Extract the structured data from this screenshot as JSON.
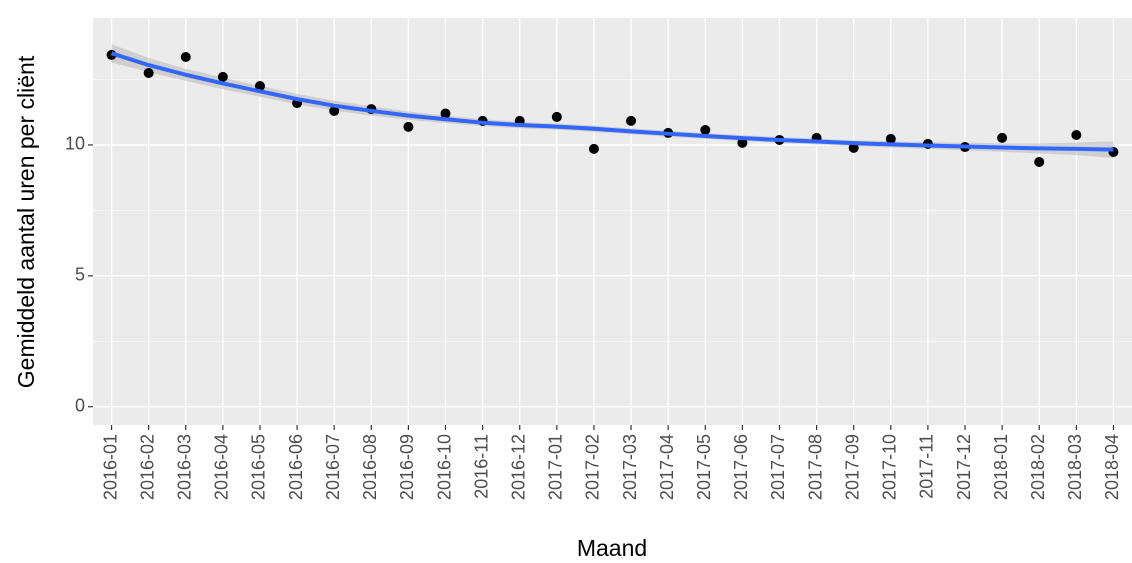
{
  "chart_data": {
    "type": "scatter",
    "x_label": "Maand",
    "y_label": "Gemiddeld aantal uren per cliënt",
    "categories": [
      "2016-01",
      "2016-02",
      "2016-03",
      "2016-04",
      "2016-05",
      "2016-06",
      "2016-07",
      "2016-08",
      "2016-09",
      "2016-10",
      "2016-11",
      "2016-12",
      "2017-01",
      "2017-02",
      "2017-03",
      "2017-04",
      "2017-05",
      "2017-06",
      "2017-07",
      "2017-08",
      "2017-09",
      "2017-10",
      "2017-11",
      "2017-12",
      "2018-01",
      "2018-02",
      "2018-03",
      "2018-04"
    ],
    "values": [
      13.44,
      12.75,
      13.36,
      12.6,
      12.25,
      11.6,
      11.3,
      11.37,
      10.69,
      11.2,
      10.92,
      10.92,
      11.07,
      9.85,
      10.92,
      10.46,
      10.57,
      10.08,
      10.19,
      10.27,
      9.89,
      10.23,
      10.04,
      9.92,
      10.27,
      9.35,
      10.38,
      9.73
    ],
    "color": "#000000",
    "smooth": {
      "color": "#3366FF",
      "band_color": "#BDBDBD",
      "values": [
        13.5,
        13.05,
        12.68,
        12.35,
        12.05,
        11.75,
        11.5,
        11.3,
        11.12,
        10.98,
        10.85,
        10.76,
        10.7,
        10.62,
        10.52,
        10.43,
        10.34,
        10.26,
        10.19,
        10.13,
        10.07,
        10.02,
        9.98,
        9.94,
        9.9,
        9.87,
        9.85,
        9.82
      ],
      "lower": [
        13.15,
        12.78,
        12.45,
        12.13,
        11.84,
        11.55,
        11.31,
        11.12,
        10.96,
        10.84,
        10.72,
        10.64,
        10.58,
        10.5,
        10.41,
        10.32,
        10.23,
        10.15,
        10.08,
        10.02,
        9.96,
        9.9,
        9.85,
        9.79,
        9.74,
        9.68,
        9.61,
        9.5
      ],
      "upper": [
        13.85,
        13.32,
        12.91,
        12.57,
        12.26,
        11.95,
        11.69,
        11.48,
        11.28,
        11.12,
        10.98,
        10.88,
        10.82,
        10.74,
        10.63,
        10.54,
        10.45,
        10.37,
        10.3,
        10.24,
        10.18,
        10.14,
        10.11,
        10.09,
        10.06,
        10.06,
        10.09,
        10.14
      ]
    },
    "ylim": [
      -0.7,
      14.85
    ],
    "yticks": [
      0,
      5,
      10
    ],
    "minor_yticks": [
      2.5,
      7.5,
      12.5
    ],
    "grid": true
  }
}
